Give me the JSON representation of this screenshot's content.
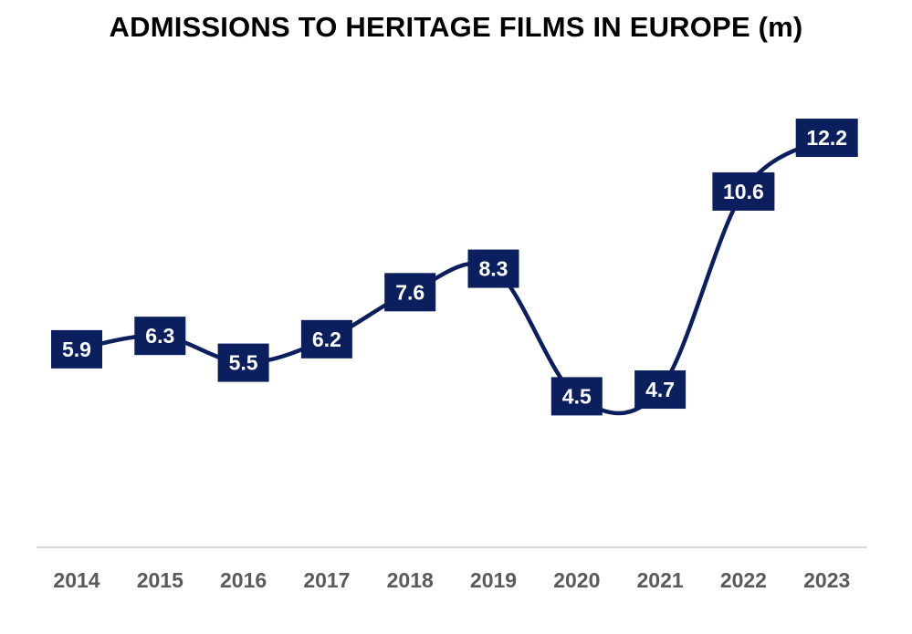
{
  "chart_data": {
    "type": "line",
    "title": "ADMISSIONS TO HERITAGE FILMS IN EUROPE (m)",
    "xlabel": "",
    "ylabel": "",
    "categories": [
      "2014",
      "2015",
      "2016",
      "2017",
      "2018",
      "2019",
      "2020",
      "2021",
      "2022",
      "2023"
    ],
    "series": [
      {
        "values": [
          5.9,
          6.3,
          5.5,
          6.2,
          7.6,
          8.3,
          4.5,
          4.7,
          10.6,
          12.2
        ],
        "labels": [
          "5.9",
          "6.3",
          "5.5",
          "6.2",
          "7.6",
          "8.3",
          "4.5",
          "4.7",
          "10.6",
          "12.2"
        ]
      }
    ],
    "ylim": [
      0,
      14
    ],
    "grid": false,
    "legend": "none",
    "smooth": true,
    "data_labels": true
  },
  "colors": {
    "series_line": "#0b1f5e",
    "label_box": "#0b1f5e",
    "label_text": "#ffffff",
    "axis_line": "#d9d9d9",
    "tick_text": "#5a5a5a",
    "title_text": "#000000"
  }
}
